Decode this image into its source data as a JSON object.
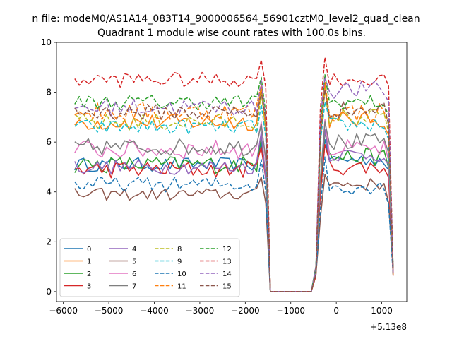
{
  "suptitle": "n file: modeM0/AS1A14_083T14_9000006564_56901cztM0_level2_quad_clean",
  "chart_data": {
    "type": "line",
    "title": "Quadrant 1 module wise count rates with 100.0s bins.",
    "xlabel": "",
    "ylabel": "",
    "x_offset_label": "+5.13e8",
    "xlim": [
      -6150,
      1550
    ],
    "ylim": [
      -0.4,
      10.0
    ],
    "xticks": [
      -6000,
      -5000,
      -4000,
      -3000,
      -2000,
      -1000,
      0,
      1000
    ],
    "xtick_labels": [
      "−6000",
      "−5000",
      "−4000",
      "−3000",
      "−2000",
      "−1000",
      "0",
      "1000"
    ],
    "yticks": [
      0,
      2,
      4,
      6,
      8,
      10
    ],
    "ytick_labels": [
      "0",
      "2",
      "4",
      "6",
      "8",
      "10"
    ],
    "grid": false,
    "legend_position": "lower-left",
    "legend_columns": 4,
    "x": {
      "segment1_start": -5750,
      "segment1_end": -1550,
      "segment2_start": -350,
      "segment2_end": 1250,
      "gap_points": [
        -1450,
        -1350,
        -1250,
        -1150,
        -1050,
        -950,
        -850,
        -750,
        -650,
        -550,
        -450
      ],
      "step": 100
    },
    "series": [
      {
        "name": "0",
        "color": "#1f77b4",
        "dashed": false,
        "level1": 5.1,
        "level2": 5.3,
        "noise": 0.28,
        "peak": 6.3
      },
      {
        "name": "1",
        "color": "#ff7f0e",
        "dashed": false,
        "level1": 6.8,
        "level2": 6.9,
        "noise": 0.35,
        "peak": 8.6
      },
      {
        "name": "2",
        "color": "#2ca02c",
        "dashed": false,
        "level1": 5.1,
        "level2": 5.4,
        "noise": 0.35,
        "peak": 6.6
      },
      {
        "name": "3",
        "color": "#d62728",
        "dashed": false,
        "level1": 4.9,
        "level2": 5.0,
        "noise": 0.35,
        "peak": 6.1
      },
      {
        "name": "4",
        "color": "#9467bd",
        "dashed": false,
        "level1": 5.0,
        "level2": 5.5,
        "noise": 0.3,
        "peak": 6.7
      },
      {
        "name": "5",
        "color": "#8c564b",
        "dashed": false,
        "level1": 3.9,
        "level2": 4.3,
        "noise": 0.25,
        "peak": 4.9
      },
      {
        "name": "6",
        "color": "#e377c2",
        "dashed": false,
        "level1": 5.7,
        "level2": 5.7,
        "noise": 0.4,
        "peak": 7.1
      },
      {
        "name": "7",
        "color": "#7f7f7f",
        "dashed": false,
        "level1": 5.8,
        "level2": 6.0,
        "noise": 0.35,
        "peak": 7.0
      },
      {
        "name": "8",
        "color": "#bcbd22",
        "dashed": true,
        "level1": 6.8,
        "level2": 7.0,
        "noise": 0.35,
        "peak": 8.3
      },
      {
        "name": "9",
        "color": "#17becf",
        "dashed": true,
        "level1": 6.6,
        "level2": 6.7,
        "noise": 0.3,
        "peak": 7.8
      },
      {
        "name": "10",
        "color": "#1f77b4",
        "dashed": true,
        "level1": 4.3,
        "level2": 4.2,
        "noise": 0.3,
        "peak": 5.6
      },
      {
        "name": "11",
        "color": "#ff7f0e",
        "dashed": true,
        "level1": 7.2,
        "level2": 7.2,
        "noise": 0.4,
        "peak": 8.6
      },
      {
        "name": "12",
        "color": "#2ca02c",
        "dashed": true,
        "level1": 7.6,
        "level2": 7.6,
        "noise": 0.3,
        "peak": 8.9
      },
      {
        "name": "13",
        "color": "#d62728",
        "dashed": true,
        "level1": 8.5,
        "level2": 8.5,
        "noise": 0.3,
        "peak": 9.6
      },
      {
        "name": "14",
        "color": "#9467bd",
        "dashed": true,
        "level1": 7.4,
        "level2": 8.1,
        "noise": 0.35,
        "peak": 8.8
      },
      {
        "name": "15",
        "color": "#8c564b",
        "dashed": true,
        "level1": 7.2,
        "level2": 7.3,
        "noise": 0.35,
        "peak": 8.3
      }
    ]
  }
}
